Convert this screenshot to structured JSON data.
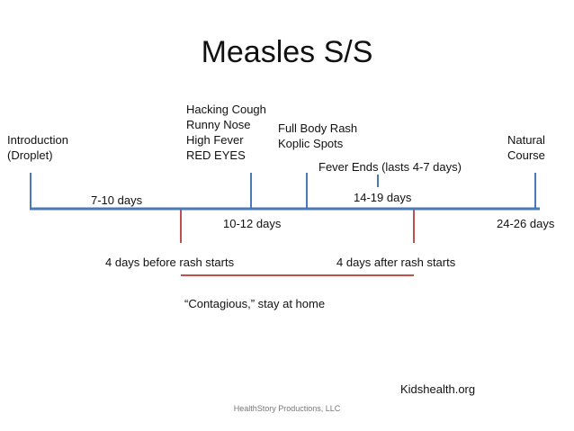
{
  "title": "Measles S/S",
  "events_above": {
    "introduction": "Introduction\n(Droplet)",
    "symptoms": "Hacking Cough\nRunny Nose\nHigh Fever\nRED EYES",
    "rash": "Full Body Rash\nKoplic Spots",
    "fever_ends": "Fever Ends (lasts 4-7 days)",
    "natural_course": "Natural\nCourse"
  },
  "durations": {
    "d_7_10": "7-10 days",
    "d_10_12": "10-12 days",
    "d_14_19": "14-19 days",
    "d_24_26": "24-26 days"
  },
  "contagious": {
    "start": "4 days before rash starts",
    "end": "4 days after rash starts",
    "note": "“Contagious,” stay at home"
  },
  "source": "Kidshealth.org",
  "footer": "HealthStory Productions, LLC",
  "colors": {
    "timeline": "#4a7ab5",
    "contagious": "#c0504d",
    "text": "#111111"
  }
}
